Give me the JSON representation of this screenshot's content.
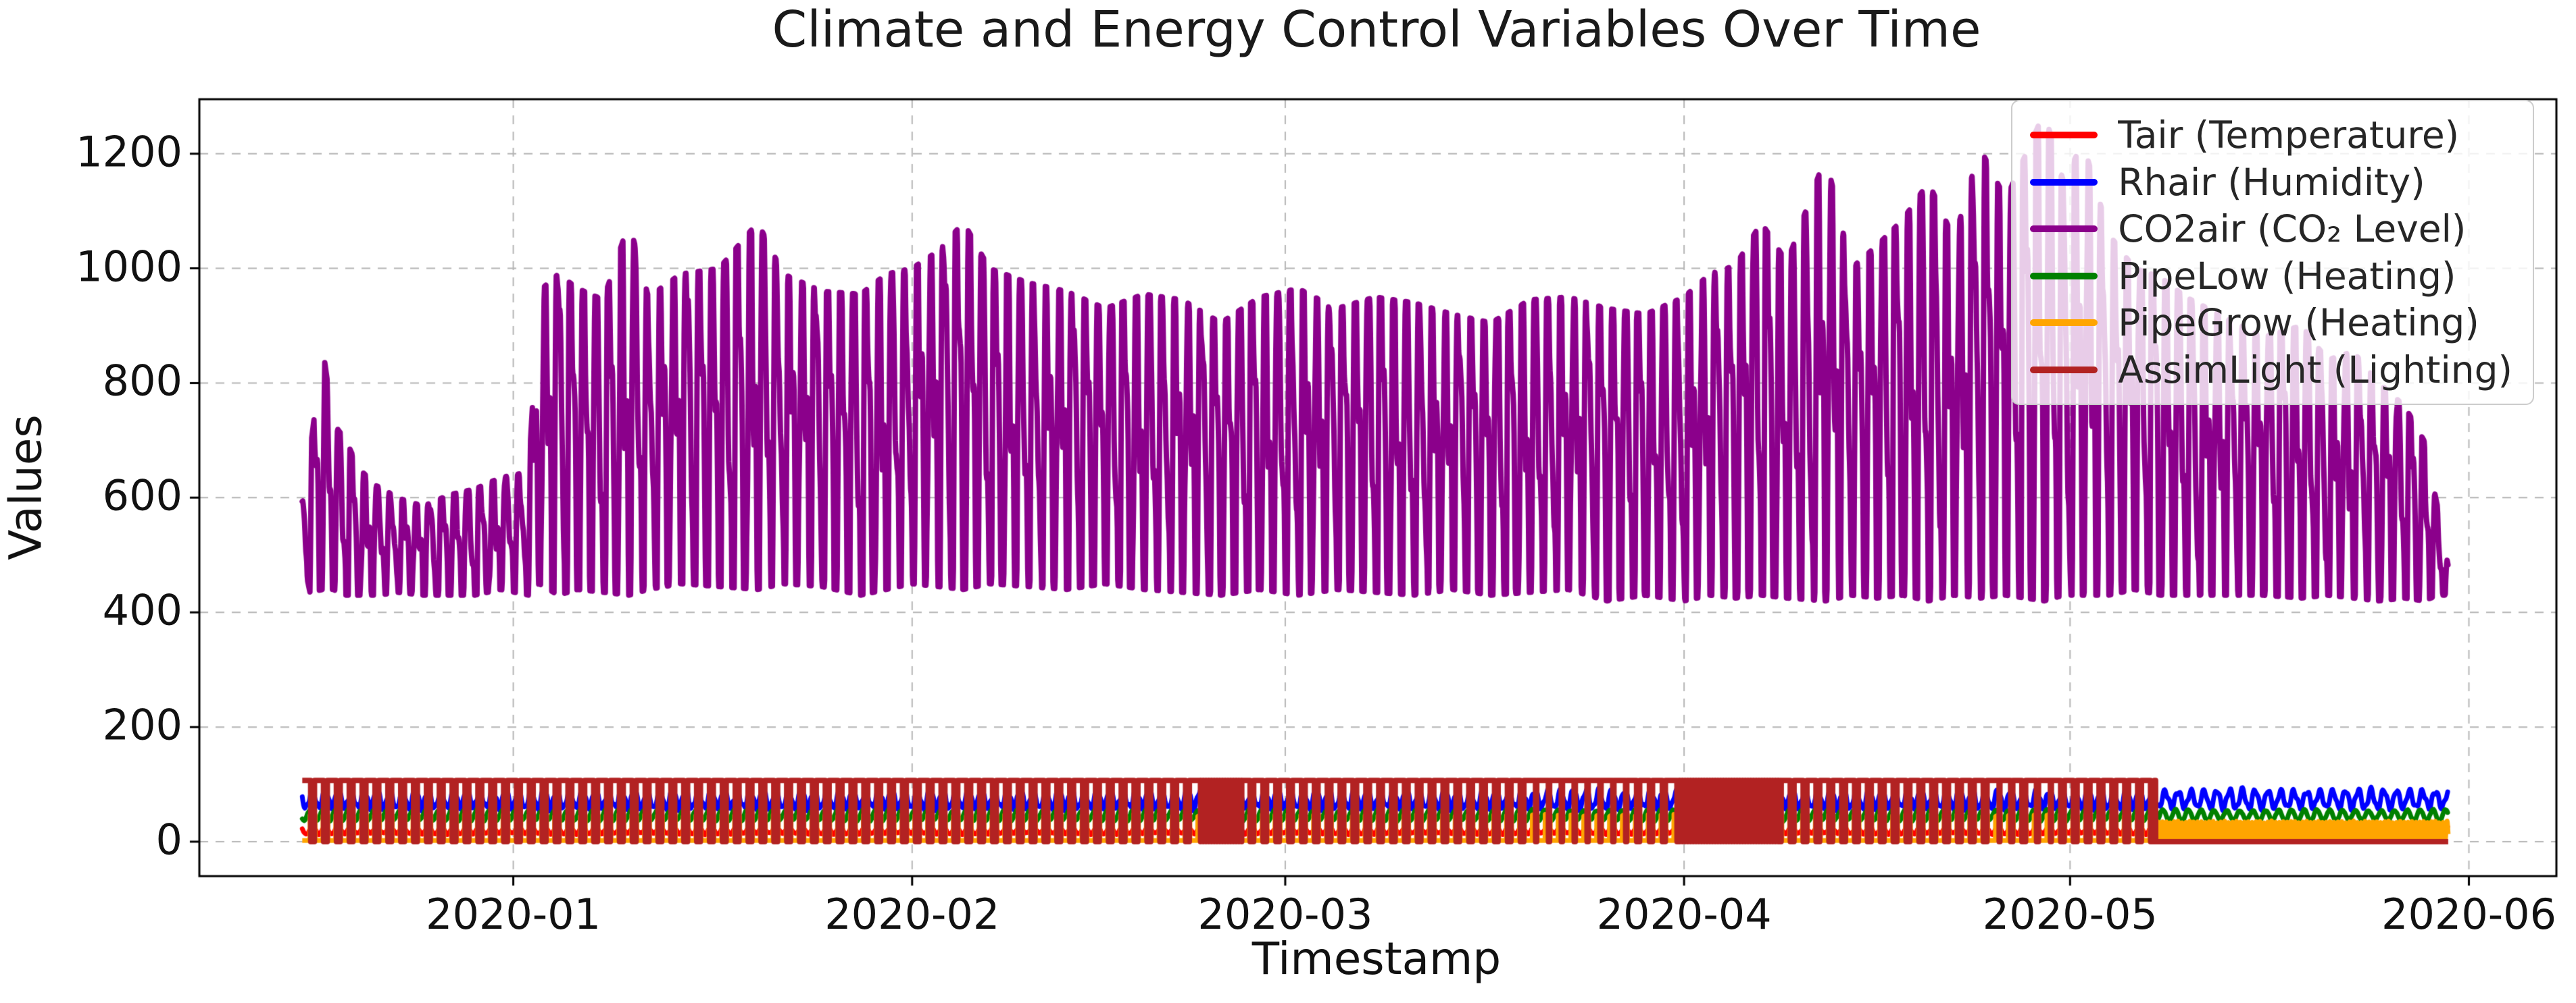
{
  "chart_data": {
    "type": "line",
    "title": "Climate and Energy Control Variables Over Time",
    "xlabel": "Timestamp",
    "ylabel": "Values",
    "x_start_date": "2019-12-15",
    "x_tick_labels": [
      "2020-01",
      "2020-02",
      "2020-03",
      "2020-04",
      "2020-05",
      "2020-06"
    ],
    "x_tick_days": [
      17,
      48,
      77,
      108,
      138,
      169
    ],
    "y_ticks": [
      0,
      200,
      400,
      600,
      800,
      1000,
      1200
    ],
    "x_range_days": [
      -7.4,
      175.8
    ],
    "y_range": [
      -60,
      1295
    ],
    "data_span_days": [
      0.6,
      167.4
    ],
    "grid": true,
    "grid_color": "#b4b4b4",
    "legend_position": "upper right",
    "legend_bg": "rgba(255,255,255,0.8)",
    "legend_border": "#cccccc",
    "series": [
      {
        "name": "Tair (Temperature)",
        "color": "#ff0000",
        "kind": "daily_sine",
        "seed": 3,
        "base": 20,
        "amp": 6,
        "phase": -0.15,
        "noise": 2,
        "approx_range": [
          13,
          27
        ]
      },
      {
        "name": "Rhair (Humidity)",
        "color": "#0000ff",
        "kind": "daily_sine",
        "seed": 7,
        "base": 74,
        "amp": 15,
        "phase": -0.15,
        "harmonic": 4,
        "noise": 2.5,
        "approx_range": [
          55,
          93
        ]
      },
      {
        "name": "CO2air (CO₂ Level)",
        "color": "#8B008B",
        "kind": "co2_oscillation",
        "seed": 11,
        "envelope": [
          [
            0.6,
            500,
            600
          ],
          [
            1.2,
            435,
            680
          ],
          [
            2.2,
            440,
            860
          ],
          [
            3.0,
            440,
            730
          ],
          [
            4.0,
            430,
            700
          ],
          [
            5.0,
            430,
            650
          ],
          [
            6.5,
            430,
            620
          ],
          [
            8.0,
            435,
            600
          ],
          [
            10.0,
            430,
            585
          ],
          [
            12.0,
            430,
            605
          ],
          [
            14.0,
            430,
            615
          ],
          [
            16.0,
            440,
            635
          ],
          [
            18.2,
            430,
            645
          ],
          [
            19.0,
            450,
            960
          ],
          [
            20.5,
            430,
            990
          ],
          [
            22.0,
            440,
            965
          ],
          [
            24.0,
            435,
            945
          ],
          [
            26.0,
            430,
            1080
          ],
          [
            27.5,
            440,
            950
          ],
          [
            30.0,
            450,
            990
          ],
          [
            33.0,
            445,
            1000
          ],
          [
            36.0,
            440,
            1080
          ],
          [
            38.0,
            450,
            990
          ],
          [
            41.0,
            445,
            960
          ],
          [
            44.0,
            430,
            955
          ],
          [
            46.0,
            440,
            990
          ],
          [
            48.0,
            450,
            1000
          ],
          [
            50.0,
            445,
            1030
          ],
          [
            52.0,
            440,
            1080
          ],
          [
            54.0,
            450,
            1000
          ],
          [
            57.0,
            445,
            975
          ],
          [
            60.0,
            440,
            960
          ],
          [
            63.0,
            450,
            930
          ],
          [
            66.0,
            440,
            955
          ],
          [
            69.0,
            435,
            945
          ],
          [
            72.0,
            430,
            905
          ],
          [
            75.0,
            440,
            950
          ],
          [
            78.0,
            430,
            965
          ],
          [
            81.0,
            440,
            930
          ],
          [
            84.0,
            435,
            950
          ],
          [
            87.0,
            430,
            940
          ],
          [
            90.0,
            440,
            920
          ],
          [
            93.0,
            430,
            905
          ],
          [
            96.0,
            435,
            945
          ],
          [
            99.0,
            440,
            950
          ],
          [
            102.0,
            420,
            930
          ],
          [
            105.0,
            430,
            920
          ],
          [
            108.0,
            420,
            950
          ],
          [
            110.0,
            430,
            990
          ],
          [
            112.0,
            425,
            1005
          ],
          [
            114.0,
            430,
            1080
          ],
          [
            116.0,
            425,
            1010
          ],
          [
            119.0,
            420,
            1195
          ],
          [
            121.0,
            430,
            1000
          ],
          [
            123.0,
            425,
            1040
          ],
          [
            125.0,
            430,
            1085
          ],
          [
            127.0,
            420,
            1150
          ],
          [
            129.0,
            430,
            1050
          ],
          [
            131.0,
            425,
            1210
          ],
          [
            133.0,
            430,
            1120
          ],
          [
            136.0,
            420,
            1272
          ],
          [
            137.5,
            430,
            1150
          ],
          [
            139.0,
            430,
            1220
          ],
          [
            141.0,
            430,
            1060
          ],
          [
            143.0,
            440,
            1000
          ],
          [
            145.0,
            430,
            985
          ],
          [
            147.0,
            430,
            950
          ],
          [
            150.0,
            430,
            915
          ],
          [
            153.0,
            430,
            880
          ],
          [
            156.0,
            425,
            900
          ],
          [
            158.0,
            430,
            840
          ],
          [
            160.0,
            425,
            855
          ],
          [
            162.0,
            420,
            800
          ],
          [
            164.0,
            425,
            760
          ],
          [
            165.5,
            420,
            700
          ],
          [
            166.6,
            430,
            580
          ],
          [
            167.4,
            430,
            480
          ]
        ],
        "approx_range": [
          420,
          1272
        ]
      },
      {
        "name": "PipeLow (Heating)",
        "color": "#008000",
        "kind": "daily_sine",
        "seed": 5,
        "base": 46,
        "amp": 9,
        "phase": 0.05,
        "noise": 2,
        "approx_range": [
          35,
          56
        ]
      },
      {
        "name": "PipeGrow (Heating)",
        "color": "#ffa500",
        "kind": "daily_pulse",
        "seed": 13,
        "pulse_hi": 46,
        "pulse_lo": 2,
        "on_start": 0.2,
        "on_end": 0.6,
        "band_mode_after_day": 144.7,
        "band_mid": 17.5,
        "band_amp": 17,
        "approx_range": [
          0,
          48
        ]
      },
      {
        "name": "AssimLight (Lighting)",
        "color": "#b22222",
        "kind": "square_duty",
        "seed": 17,
        "high": 107,
        "duty_keyframes": [
          [
            0.6,
            0.7
          ],
          [
            70.0,
            0.7
          ],
          [
            70.4,
            0.97
          ],
          [
            73.6,
            0.97
          ],
          [
            74.0,
            0.72
          ],
          [
            95.5,
            0.72
          ],
          [
            96.3,
            0.9
          ],
          [
            103.8,
            0.9
          ],
          [
            104.3,
            0.76
          ],
          [
            107.2,
            0.76
          ],
          [
            107.6,
            0.98
          ],
          [
            115.4,
            0.98
          ],
          [
            115.9,
            0.7
          ],
          [
            131.3,
            0.7
          ],
          [
            131.6,
            0.93
          ],
          [
            133.2,
            0.93
          ],
          [
            133.6,
            0.7
          ],
          [
            135.2,
            0.7
          ],
          [
            135.5,
            0.92
          ],
          [
            136.9,
            0.92
          ],
          [
            137.3,
            0.7
          ],
          [
            144.4,
            0.7
          ],
          [
            144.7,
            0.0
          ],
          [
            167.4,
            0.0
          ]
        ],
        "approx_range": [
          0,
          107
        ]
      }
    ]
  }
}
